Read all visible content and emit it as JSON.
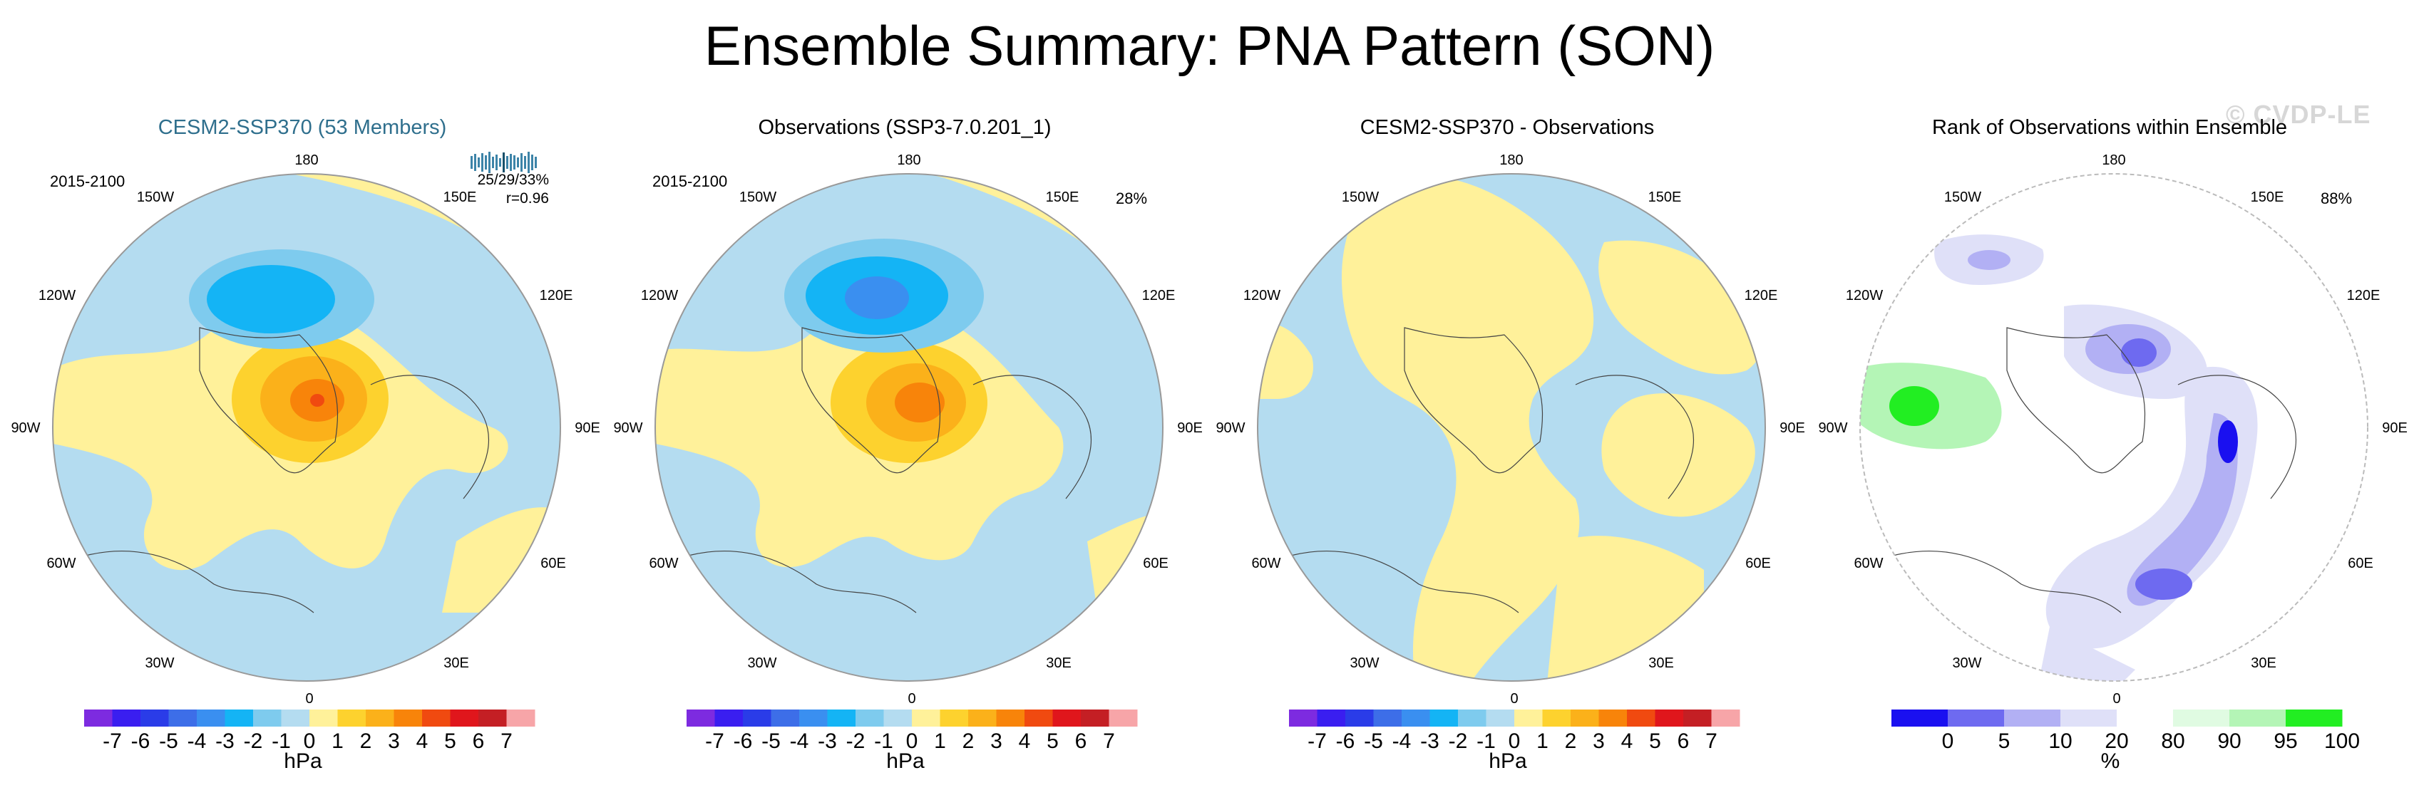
{
  "title": "Ensemble Summary: PNA Pattern (SON)",
  "watermark": "© CVDP-LE",
  "panels": [
    {
      "id": "p1",
      "title": "CESM2-SSP370 (53 Members)",
      "period": "2015-2100",
      "stats_line1": "25/29/33%",
      "stats_line2": "r=0.96",
      "percent": ""
    },
    {
      "id": "p2",
      "title": "Observations (SSP3-7.0.201_1)",
      "period": "2015-2100",
      "percent": "28%"
    },
    {
      "id": "p3",
      "title": "CESM2-SSP370 - Observations",
      "percent": ""
    },
    {
      "id": "p4",
      "title": "Rank of Observations within Ensemble",
      "percent": "88%"
    }
  ],
  "map_labels": [
    "180",
    "150W",
    "150E",
    "120W",
    "120E",
    "90W",
    "90E",
    "60W",
    "60E",
    "30W",
    "30E",
    "0"
  ],
  "chart_data": [
    {
      "type": "heatmap",
      "title": "CESM2-SSP370 (53 Members)",
      "projection": "north polar stereographic",
      "units": "hPa",
      "colorbar_levels": [
        "-7",
        "-6",
        "-5",
        "-4",
        "-3",
        "-2",
        "-1",
        "0",
        "1",
        "2",
        "3",
        "4",
        "5",
        "6",
        "7"
      ],
      "colorbar_colors": [
        "#7d2be0",
        "#3a1ef0",
        "#2a3ce8",
        "#3d6ee8",
        "#3a8ff0",
        "#14b4f5",
        "#7ecbee",
        "#b4dcf0",
        "#fff19a",
        "#fdd22e",
        "#fbb11a",
        "#f8840a",
        "#f04a10",
        "#e0161c",
        "#c41f24",
        "#f7a5a8"
      ],
      "features": [
        "negative anomaly center near 180 (about -4 hPa)",
        "positive anomaly center over Arctic/Canada (about +5 hPa)"
      ]
    },
    {
      "type": "heatmap",
      "title": "Observations (SSP3-7.0.201_1)",
      "projection": "north polar stereographic",
      "units": "hPa",
      "colorbar_levels": [
        "-7",
        "-6",
        "-5",
        "-4",
        "-3",
        "-2",
        "-1",
        "0",
        "1",
        "2",
        "3",
        "4",
        "5",
        "6",
        "7"
      ],
      "features": [
        "negative anomaly center near 180 (about -5 hPa)",
        "positive anomaly center over Arctic (about +4 hPa)"
      ]
    },
    {
      "type": "heatmap",
      "title": "CESM2-SSP370 - Observations",
      "projection": "north polar stereographic",
      "units": "hPa",
      "colorbar_levels": [
        "-7",
        "-6",
        "-5",
        "-4",
        "-3",
        "-2",
        "-1",
        "0",
        "1",
        "2",
        "3",
        "4",
        "5",
        "6",
        "7"
      ],
      "features": [
        "differences within -1 to +1 hPa"
      ]
    },
    {
      "type": "heatmap",
      "title": "Rank of Observations within Ensemble",
      "projection": "north polar stereographic",
      "units": "%",
      "colorbar_levels": [
        "0",
        "5",
        "10",
        "20",
        "80",
        "90",
        "95",
        "100"
      ],
      "colorbar_colors": [
        "#1a10f0",
        "#6e6af0",
        "#b2b0f4",
        "#dfe0f8",
        "#ffffff",
        "#e0fbe2",
        "#b4f5b6",
        "#22ee22"
      ],
      "features": [
        "low ranks over eastern hemisphere",
        "high ranks over North America"
      ]
    }
  ],
  "colorbar_pressure": {
    "ticks": [
      "-7",
      "-6",
      "-5",
      "-4",
      "-3",
      "-2",
      "-1",
      "0",
      "1",
      "2",
      "3",
      "4",
      "5",
      "6",
      "7"
    ],
    "colors": [
      "#7d2be0",
      "#3a1ef0",
      "#2a3ce8",
      "#3d6ee8",
      "#3a8ff0",
      "#14b4f5",
      "#7ecbee",
      "#b4dcf0",
      "#fff19a",
      "#fdd22e",
      "#fbb11a",
      "#f8840a",
      "#f04a10",
      "#e0161c",
      "#c41f24",
      "#f7a5a8"
    ],
    "unit": "hPa"
  },
  "colorbar_rank": {
    "ticks": [
      "0",
      "5",
      "10",
      "20",
      "80",
      "90",
      "95",
      "100"
    ],
    "colors": [
      "#1a10f0",
      "#6e6af0",
      "#b2b0f4",
      "#dfe0f8",
      "#ffffff",
      "#e0fbe2",
      "#b4f5b6",
      "#22ee22"
    ],
    "unit": "%"
  }
}
